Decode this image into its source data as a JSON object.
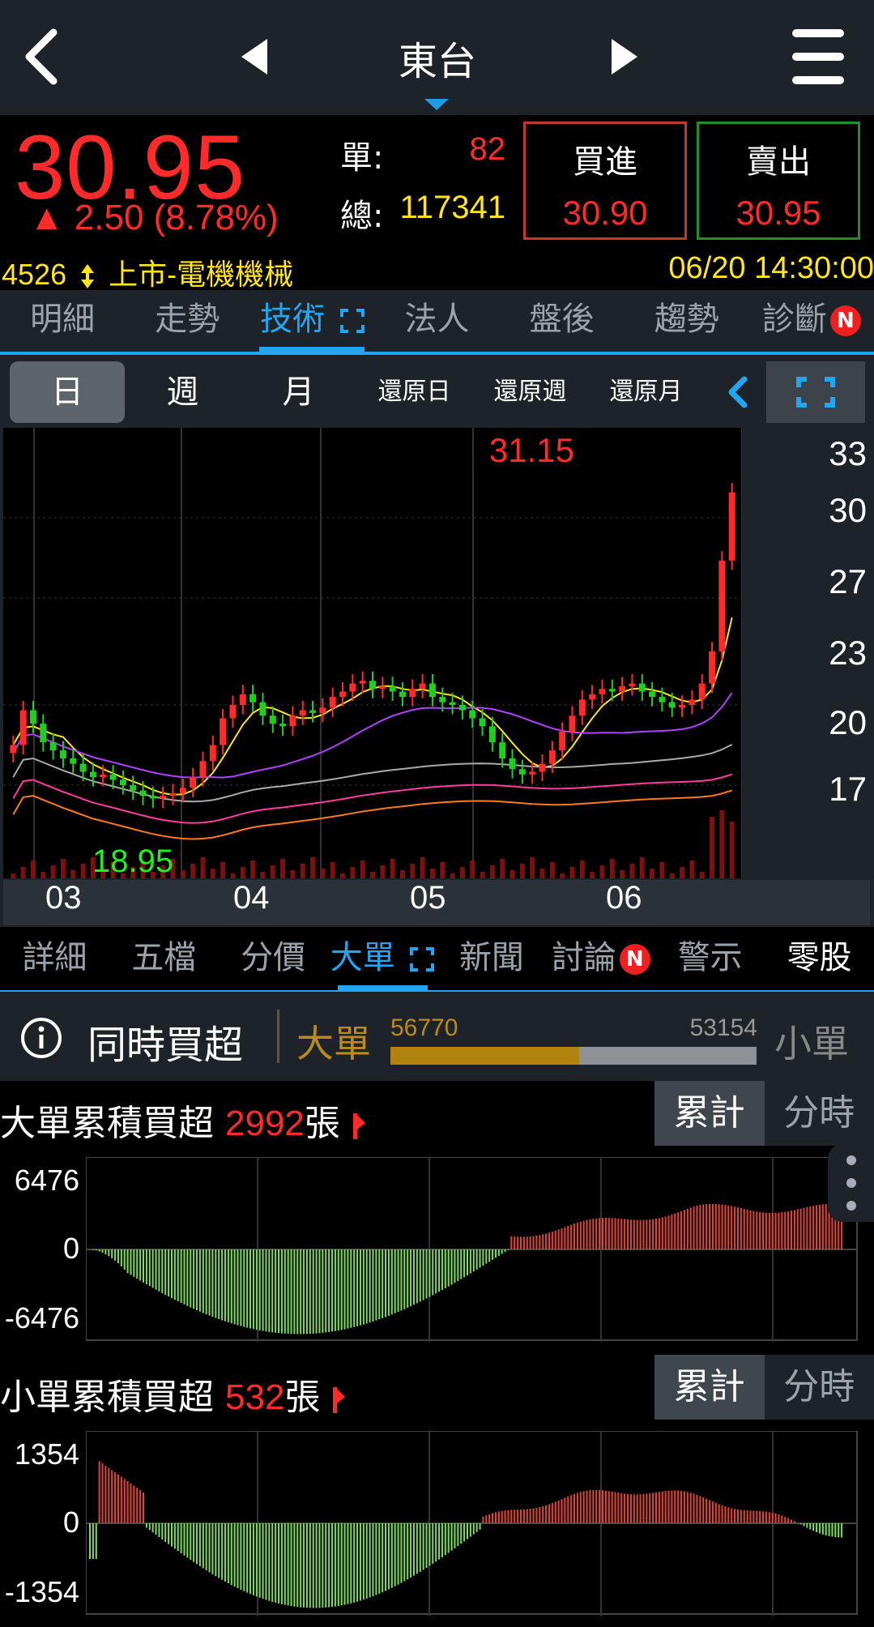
{
  "header": {
    "title": "東台"
  },
  "quote": {
    "price": "30.95",
    "change": "▲ 2.50 (8.78%)",
    "single_label": "單:",
    "single_value": "82",
    "total_label": "總:",
    "total_value": "117341",
    "buy_label": "買進",
    "buy_price": "30.90",
    "sell_label": "賣出",
    "sell_price": "30.95",
    "code": "4526",
    "market": "上市-電機機械",
    "datetime": "06/20 14:30:00"
  },
  "main_tabs": [
    "明細",
    "走勢",
    "技術",
    "法人",
    "盤後",
    "趨勢",
    "診斷"
  ],
  "main_tab_active": "技術",
  "badge": "N",
  "periods": [
    "日",
    "週",
    "月",
    "還原日",
    "還原週",
    "還原月"
  ],
  "kchart": {
    "high_label": "31.15",
    "low_label": "18.95",
    "y_ticks": [
      "33",
      "30",
      "27",
      "23",
      "20",
      "17"
    ],
    "x_ticks": [
      "03",
      "04",
      "05",
      "06"
    ]
  },
  "sub_tabs": [
    "詳細",
    "五檔",
    "分價",
    "大單",
    "新聞",
    "討論",
    "警示",
    "零股"
  ],
  "sub_tab_active": "大單",
  "same_time": {
    "title": "同時買超",
    "big_label": "大單",
    "small_label": "小單",
    "big_value": "56770",
    "small_value": "53154",
    "big_fraction": 0.516
  },
  "big_section": {
    "title": "大單累積買超",
    "value": "2992",
    "unit": "張"
  },
  "small_section": {
    "title": "小單累積買超",
    "value": "532",
    "unit": "張"
  },
  "toggle": {
    "cumulative": "累計",
    "intraday": "分時"
  },
  "big_chart_ticks": [
    "6476",
    "0",
    "-6476"
  ],
  "small_chart_ticks": [
    "1354",
    "0",
    "-1354"
  ],
  "chart_data": [
    {
      "type": "candlestick",
      "title": "",
      "x_ticks": [
        "03",
        "04",
        "05",
        "06"
      ],
      "ylim": [
        17,
        33
      ],
      "y_ticks": [
        33,
        30,
        27,
        23,
        20,
        17
      ],
      "annotations": [
        "31.15",
        "18.95"
      ],
      "last_close": 30.95
    },
    {
      "type": "bar",
      "title": "大單累積買超",
      "ylim": [
        -6476,
        6476
      ],
      "y_ticks": [
        6476,
        0,
        -6476
      ]
    },
    {
      "type": "bar",
      "title": "小單累積買超",
      "ylim": [
        -1354,
        1354
      ],
      "y_ticks": [
        1354,
        0,
        -1354
      ]
    }
  ],
  "colors": {
    "up": "#ff2a2a",
    "down": "#22cc22",
    "accent": "#22a6f2",
    "highlight": "#ffe51a"
  }
}
